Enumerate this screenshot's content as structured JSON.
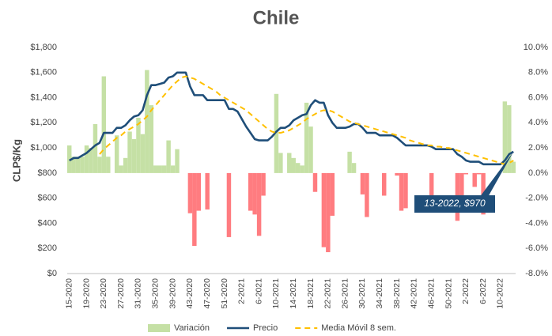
{
  "chart_data": {
    "type": "bar-line",
    "title": "Chile",
    "y_label": "CLP$/Kg",
    "annotation": "13-2022, $970",
    "categories": [
      "15-2020",
      null,
      null,
      null,
      "19-2020",
      null,
      null,
      null,
      "23-2020",
      null,
      null,
      null,
      "27-2020",
      null,
      null,
      null,
      "31-2020",
      null,
      null,
      null,
      "35-2020",
      null,
      null,
      null,
      "39-2020",
      null,
      null,
      null,
      "43-2020",
      null,
      null,
      null,
      "47-2020",
      null,
      null,
      null,
      "51-2020",
      null,
      null,
      null,
      "2-2021",
      null,
      null,
      null,
      "6-2021",
      null,
      null,
      null,
      "10-2021",
      null,
      null,
      null,
      "14-2021",
      null,
      null,
      null,
      "18-2021",
      null,
      null,
      null,
      "22-2021",
      null,
      null,
      null,
      "26-2021",
      null,
      null,
      null,
      "30-2021",
      null,
      null,
      null,
      "34-2021",
      null,
      null,
      null,
      "38-2021",
      null,
      null,
      null,
      "42-2021",
      null,
      null,
      null,
      "46-2021",
      null,
      null,
      null,
      "50-2021",
      null,
      null,
      null,
      "2-2022",
      null,
      null,
      null,
      "6-2022",
      null,
      null,
      null,
      "10-2022",
      null,
      null,
      null
    ],
    "series": [
      {
        "name": "Variación",
        "type": "bar",
        "axis": "y2",
        "color": "#c5e0a5",
        "negative_color": "#ff7c80",
        "values": [
          2.2,
          1.3,
          1.3,
          1.3,
          2.2,
          2.0,
          3.9,
          1.3,
          7.7,
          1.3,
          0,
          3.0,
          0.6,
          1.2,
          3.3,
          2.7,
          4.4,
          3.1,
          8.2,
          5.4,
          0.6,
          0.6,
          0.6,
          2.6,
          0.6,
          1.9,
          0,
          0,
          -3.2,
          -5.8,
          -3.0,
          0,
          -2.9,
          0,
          0,
          0,
          0,
          -5.1,
          0,
          0,
          0,
          0,
          -3.0,
          -3.3,
          -5.0,
          -1.8,
          0,
          0,
          6.3,
          1.6,
          0,
          1.6,
          1.2,
          0.8,
          0.6,
          5.6,
          3.7,
          -1.5,
          0,
          -5.9,
          -6.3,
          -3.4,
          0,
          0,
          0,
          1.7,
          0.8,
          0,
          -1.7,
          -3.5,
          0,
          0,
          0,
          -1.8,
          0,
          0,
          -0.2,
          -3.0,
          -2.8,
          0,
          0,
          0,
          0,
          0,
          -2.4,
          0,
          0,
          0,
          0,
          0,
          -3.8,
          -2.0,
          -0.1,
          0,
          -1.1,
          -0.1,
          -3.3,
          0,
          0,
          0,
          0,
          5.7,
          5.4,
          0.9
        ]
      },
      {
        "name": "Precio",
        "type": "line",
        "color": "#1f4e79",
        "values": [
          900,
          920,
          920,
          940,
          960,
          990,
          1020,
          1040,
          1120,
          1120,
          1120,
          1160,
          1160,
          1180,
          1220,
          1250,
          1260,
          1300,
          1420,
          1500,
          1500,
          1510,
          1520,
          1560,
          1570,
          1600,
          1600,
          1600,
          1490,
          1420,
          1420,
          1420,
          1380,
          1380,
          1380,
          1380,
          1380,
          1310,
          1310,
          1290,
          1230,
          1170,
          1120,
          1070,
          1060,
          1060,
          1060,
          1090,
          1130,
          1160,
          1160,
          1180,
          1220,
          1240,
          1260,
          1270,
          1340,
          1380,
          1360,
          1360,
          1260,
          1200,
          1160,
          1160,
          1160,
          1170,
          1190,
          1190,
          1160,
          1120,
          1120,
          1120,
          1100,
          1100,
          1100,
          1100,
          1080,
          1050,
          1020,
          1020,
          1020,
          1020,
          1020,
          1020,
          1010,
          990,
          990,
          990,
          990,
          990,
          950,
          930,
          900,
          890,
          890,
          890,
          870,
          870,
          870,
          870,
          870,
          900,
          950,
          970
        ]
      },
      {
        "name": "Media Móvil 8 sem.",
        "type": "line",
        "dashed": true,
        "color": "#ffc000",
        "values": [
          null,
          null,
          null,
          null,
          null,
          null,
          null,
          950,
          990,
          1020,
          1050,
          1080,
          1100,
          1130,
          1150,
          1170,
          1190,
          1220,
          1250,
          1300,
          1340,
          1380,
          1420,
          1460,
          1500,
          1530,
          1560,
          1570,
          1560,
          1550,
          1530,
          1510,
          1490,
          1470,
          1450,
          1420,
          1400,
          1380,
          1360,
          1340,
          1320,
          1300,
          1270,
          1240,
          1210,
          1180,
          1150,
          1130,
          1120,
          1120,
          1130,
          1140,
          1160,
          1180,
          1200,
          1230,
          1250,
          1270,
          1290,
          1300,
          1300,
          1290,
          1270,
          1250,
          1230,
          1210,
          1200,
          1190,
          1180,
          1170,
          1160,
          1150,
          1140,
          1130,
          1120,
          1110,
          1100,
          1090,
          1080,
          1060,
          1050,
          1040,
          1030,
          1020,
          1020,
          1010,
          1010,
          1000,
          1000,
          990,
          980,
          970,
          960,
          950,
          940,
          930,
          920,
          910,
          900,
          890,
          880,
          870,
          880,
          900
        ]
      }
    ],
    "ylim": [
      0,
      1800
    ],
    "yticks": [
      {
        "value": 0,
        "label": "$0"
      },
      {
        "value": 200,
        "label": "$200"
      },
      {
        "value": 400,
        "label": "$400"
      },
      {
        "value": 600,
        "label": "$600"
      },
      {
        "value": 800,
        "label": "$800"
      },
      {
        "value": 1000,
        "label": "$1,000"
      },
      {
        "value": 1200,
        "label": "$1,200"
      },
      {
        "value": 1400,
        "label": "$1,400"
      },
      {
        "value": 1600,
        "label": "$1,600"
      },
      {
        "value": 1800,
        "label": "$1,800"
      }
    ],
    "y2lim": [
      -8,
      10
    ],
    "y2ticks": [
      {
        "value": -8,
        "label": "-8.0%"
      },
      {
        "value": -6,
        "label": "-6.0%"
      },
      {
        "value": -4,
        "label": "-4.0%"
      },
      {
        "value": -2,
        "label": "-2.0%"
      },
      {
        "value": 0,
        "label": "0.0%"
      },
      {
        "value": 2,
        "label": "2.0%"
      },
      {
        "value": 4,
        "label": "4.0%"
      },
      {
        "value": 6,
        "label": "6.0%"
      },
      {
        "value": 8,
        "label": "8.0%"
      },
      {
        "value": 10,
        "label": "10.0%"
      }
    ],
    "legend": "bottom"
  }
}
